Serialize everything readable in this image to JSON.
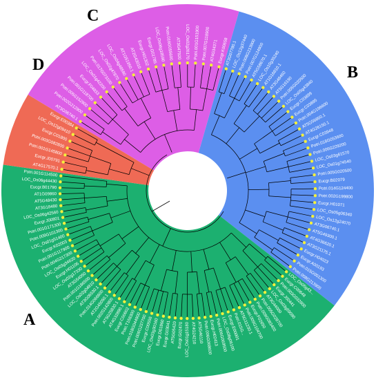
{
  "colors": {
    "A": "#1cb070",
    "B": "#5b8ff0",
    "C": "#dd5ee6",
    "D": "#ef6a55",
    "branch": "#000000",
    "tip_dot": "#f4f03c",
    "label_text": "#ffffff"
  },
  "clades": [
    {
      "letter": "A",
      "color_key": "A",
      "leaves": [
        "LOC_Os05g43...",
        "Eucgr.C00648",
        "Potri.003G032800",
        "Eucgr.J00441",
        "LOC_Os03g59090",
        "AT3G44000",
        "Potri.005G028700",
        "Potri.009G083400",
        "Eucgr.F02650",
        "Potri.009G104700",
        "AT5G11230.1",
        "Potri.015G...",
        "Eucgr.E00001",
        "LOC_Os08g06100",
        "Potri.006G069500",
        "Eucgr.H02413",
        "Potri.006G068600",
        "AT5G46110",
        "AT4G24210",
        "LOC_Os01g15180",
        "Eucgr.G02470",
        "AT5G05420",
        "Eucgr.G03041",
        "Eucgr.D01860",
        "LOC_Os03g30160",
        "Eucgr.C00556",
        "Potri.006G237700",
        "Potri.018G044900",
        "Potri.T158300",
        "Eucgr.C00602",
        "AT4G32890.1",
        "AT5G25830.1",
        "Potri.002G142800",
        "AT2G45050.1",
        "Potri.014G066600",
        "AT3G06530.1",
        "LOC_Os02g04810",
        "Potri.001G186500",
        "AT3G54050",
        "LOC_Os02g17330",
        "Eucgr.H01106",
        "LOC_Os03g34620",
        "Potri.004G217300",
        "Potri.001G117900",
        "Eucgr.K02003",
        "LOC_Os01g51400",
        "Potri.009G101300",
        "Potri.001G171300",
        "Eucgr.J00801",
        "LOC_Os06g42560",
        "AT3G18480",
        "AT5G48430",
        "AT1G09860",
        "Eucgr.B01790",
        "LOC_Os06g44430",
        "Potri.001G114500"
      ]
    },
    {
      "letter": "B",
      "color_key": "B",
      "leaves": [
        "AT3G07780.1",
        "LOC_Os12g37440",
        "Potri.008G213900",
        "Potri.007G124900",
        "AT5G58670.1",
        "LOC_Os10g35240",
        "AT1G16810.1",
        "AT3G48460",
        "AT5G16190",
        "Potri.005G020500",
        "LOC_Os05g43840",
        "Eucgr.C03899",
        "Eucgr.C03895",
        "Potri.004G196600",
        "AT5G56860.1",
        "AT4G26150.1",
        "Eucgr.C03948",
        "Potri.018G053600",
        "Potri.006G229200",
        "LOC_Os03g61570",
        "LOC_Os01g74540",
        "Potri.005G020500",
        "Eucgr.B02079",
        "Potri.014G124400",
        "Potri.002G199800",
        "Eucgr.H01071",
        "LOC_Os05g06340",
        "LOC_Os12g24070",
        "AT3G06740.1",
        "AT5G49300.1",
        "AT4G36620.1",
        "AT3G21175.1",
        "Eucgr.H04023",
        "Eucgr.A00193",
        "Potri.015G001300",
        "Potri.008G213900"
      ]
    },
    {
      "letter": "C",
      "color_key": "C",
      "leaves": [
        "AT3G06740.1",
        "Potri.002G212900",
        "Potri.005G152900",
        "Potri.001G118700",
        "Eucgr.F04833",
        "LOC_Os01g42200",
        "Potri.017G073100",
        "LOC_Os02g47870",
        "LOC_Os04g48590",
        "AT1G51950.1",
        "AT2G43010",
        "Eucgr.H01302",
        "Eucgr.G01785",
        "LOC_Os06g18590",
        "Potri.016G055600",
        "AT3G47920",
        "LOC_Os02g26170",
        "Potri.001G151900",
        "Potri.007G118900",
        "AT4G34371",
        "Eucgr.K00658"
      ]
    },
    {
      "letter": "D",
      "color_key": "D",
      "leaves": [
        "AT4G17570.1",
        "Eucgr.J00791",
        "Potri.001G145800",
        "Potri.003G082800",
        "Eucgr.C01800",
        "LOC_Os12g09410",
        "Eucgr.E00384"
      ]
    }
  ]
}
